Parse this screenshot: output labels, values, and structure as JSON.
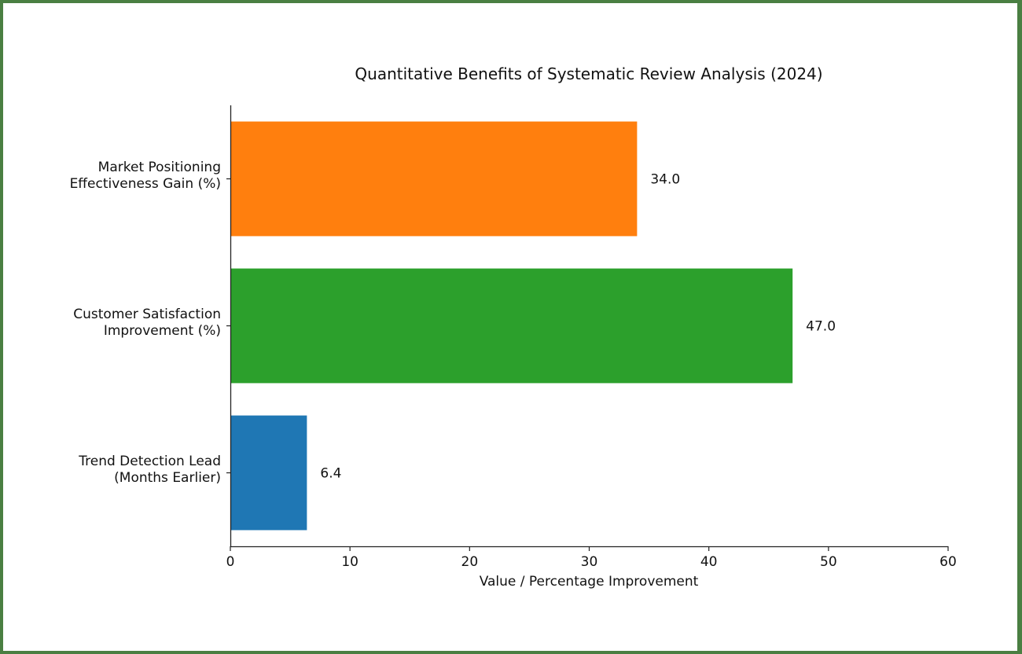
{
  "chart_data": {
    "type": "bar",
    "orientation": "horizontal",
    "title": "Quantitative Benefits of Systematic Review Analysis (2024)",
    "xlabel": "Value / Percentage Improvement",
    "ylabel": "",
    "xlim": [
      0,
      60
    ],
    "xticks": [
      0,
      10,
      20,
      30,
      40,
      50,
      60
    ],
    "grid": false,
    "categories": [
      [
        "Market Positioning",
        "Effectiveness Gain (%)"
      ],
      [
        "Customer Satisfaction",
        "Improvement (%)"
      ],
      [
        "Trend Detection Lead",
        "(Months Earlier)"
      ]
    ],
    "values": [
      34.0,
      47.0,
      6.4
    ],
    "value_labels": [
      "34.0",
      "47.0",
      "6.4"
    ],
    "colors": [
      "#ff7f0e",
      "#2ca02c",
      "#1f77b4"
    ]
  }
}
